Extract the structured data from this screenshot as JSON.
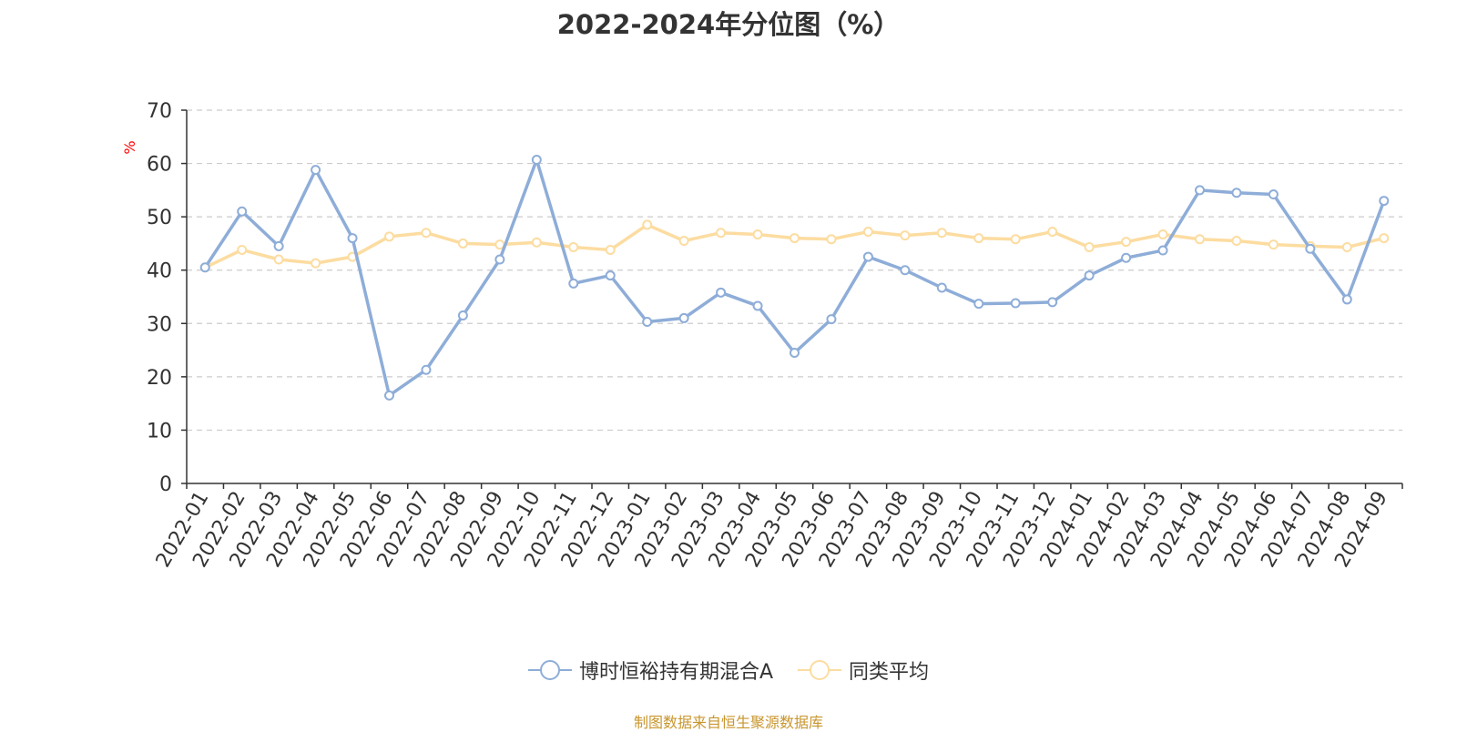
{
  "chart_data": {
    "type": "line",
    "title": "2022-2024年分位图（%）",
    "ylabel": "%",
    "ylim": [
      0,
      70
    ],
    "yticks": [
      0,
      10,
      20,
      30,
      40,
      50,
      60,
      70
    ],
    "grid": true,
    "legend_position": "bottom",
    "categories": [
      "2022-01",
      "2022-02",
      "2022-03",
      "2022-04",
      "2022-05",
      "2022-06",
      "2022-07",
      "2022-08",
      "2022-09",
      "2022-10",
      "2022-11",
      "2022-12",
      "2023-01",
      "2023-02",
      "2023-03",
      "2023-04",
      "2023-05",
      "2023-06",
      "2023-07",
      "2023-08",
      "2023-09",
      "2023-10",
      "2023-11",
      "2023-12",
      "2024-01",
      "2024-02",
      "2024-03",
      "2024-04",
      "2024-05",
      "2024-06",
      "2024-07",
      "2024-08",
      "2024-09"
    ],
    "series": [
      {
        "name": "博时恒裕持有期混合A",
        "color": "#8eadd8",
        "values": [
          40.5,
          51.0,
          44.5,
          58.8,
          46.0,
          16.5,
          21.3,
          31.5,
          42.0,
          60.7,
          37.5,
          39.0,
          30.3,
          31.0,
          35.8,
          33.3,
          24.5,
          30.8,
          42.5,
          40.0,
          36.7,
          33.7,
          33.8,
          34.0,
          39.0,
          42.3,
          43.7,
          55.0,
          54.5,
          54.2,
          44.0,
          34.5,
          53.0
        ]
      },
      {
        "name": "同类平均",
        "color": "#fcdca0",
        "values": [
          40.5,
          43.8,
          42.0,
          41.3,
          42.5,
          46.3,
          47.0,
          45.0,
          44.8,
          45.2,
          44.3,
          43.8,
          48.5,
          45.5,
          47.0,
          46.7,
          46.0,
          45.8,
          47.2,
          46.5,
          47.0,
          46.0,
          45.8,
          47.2,
          44.3,
          45.3,
          46.7,
          45.8,
          45.5,
          44.8,
          44.5,
          44.3,
          46.0
        ]
      }
    ],
    "source_note": "制图数据来自恒生聚源数据库"
  }
}
